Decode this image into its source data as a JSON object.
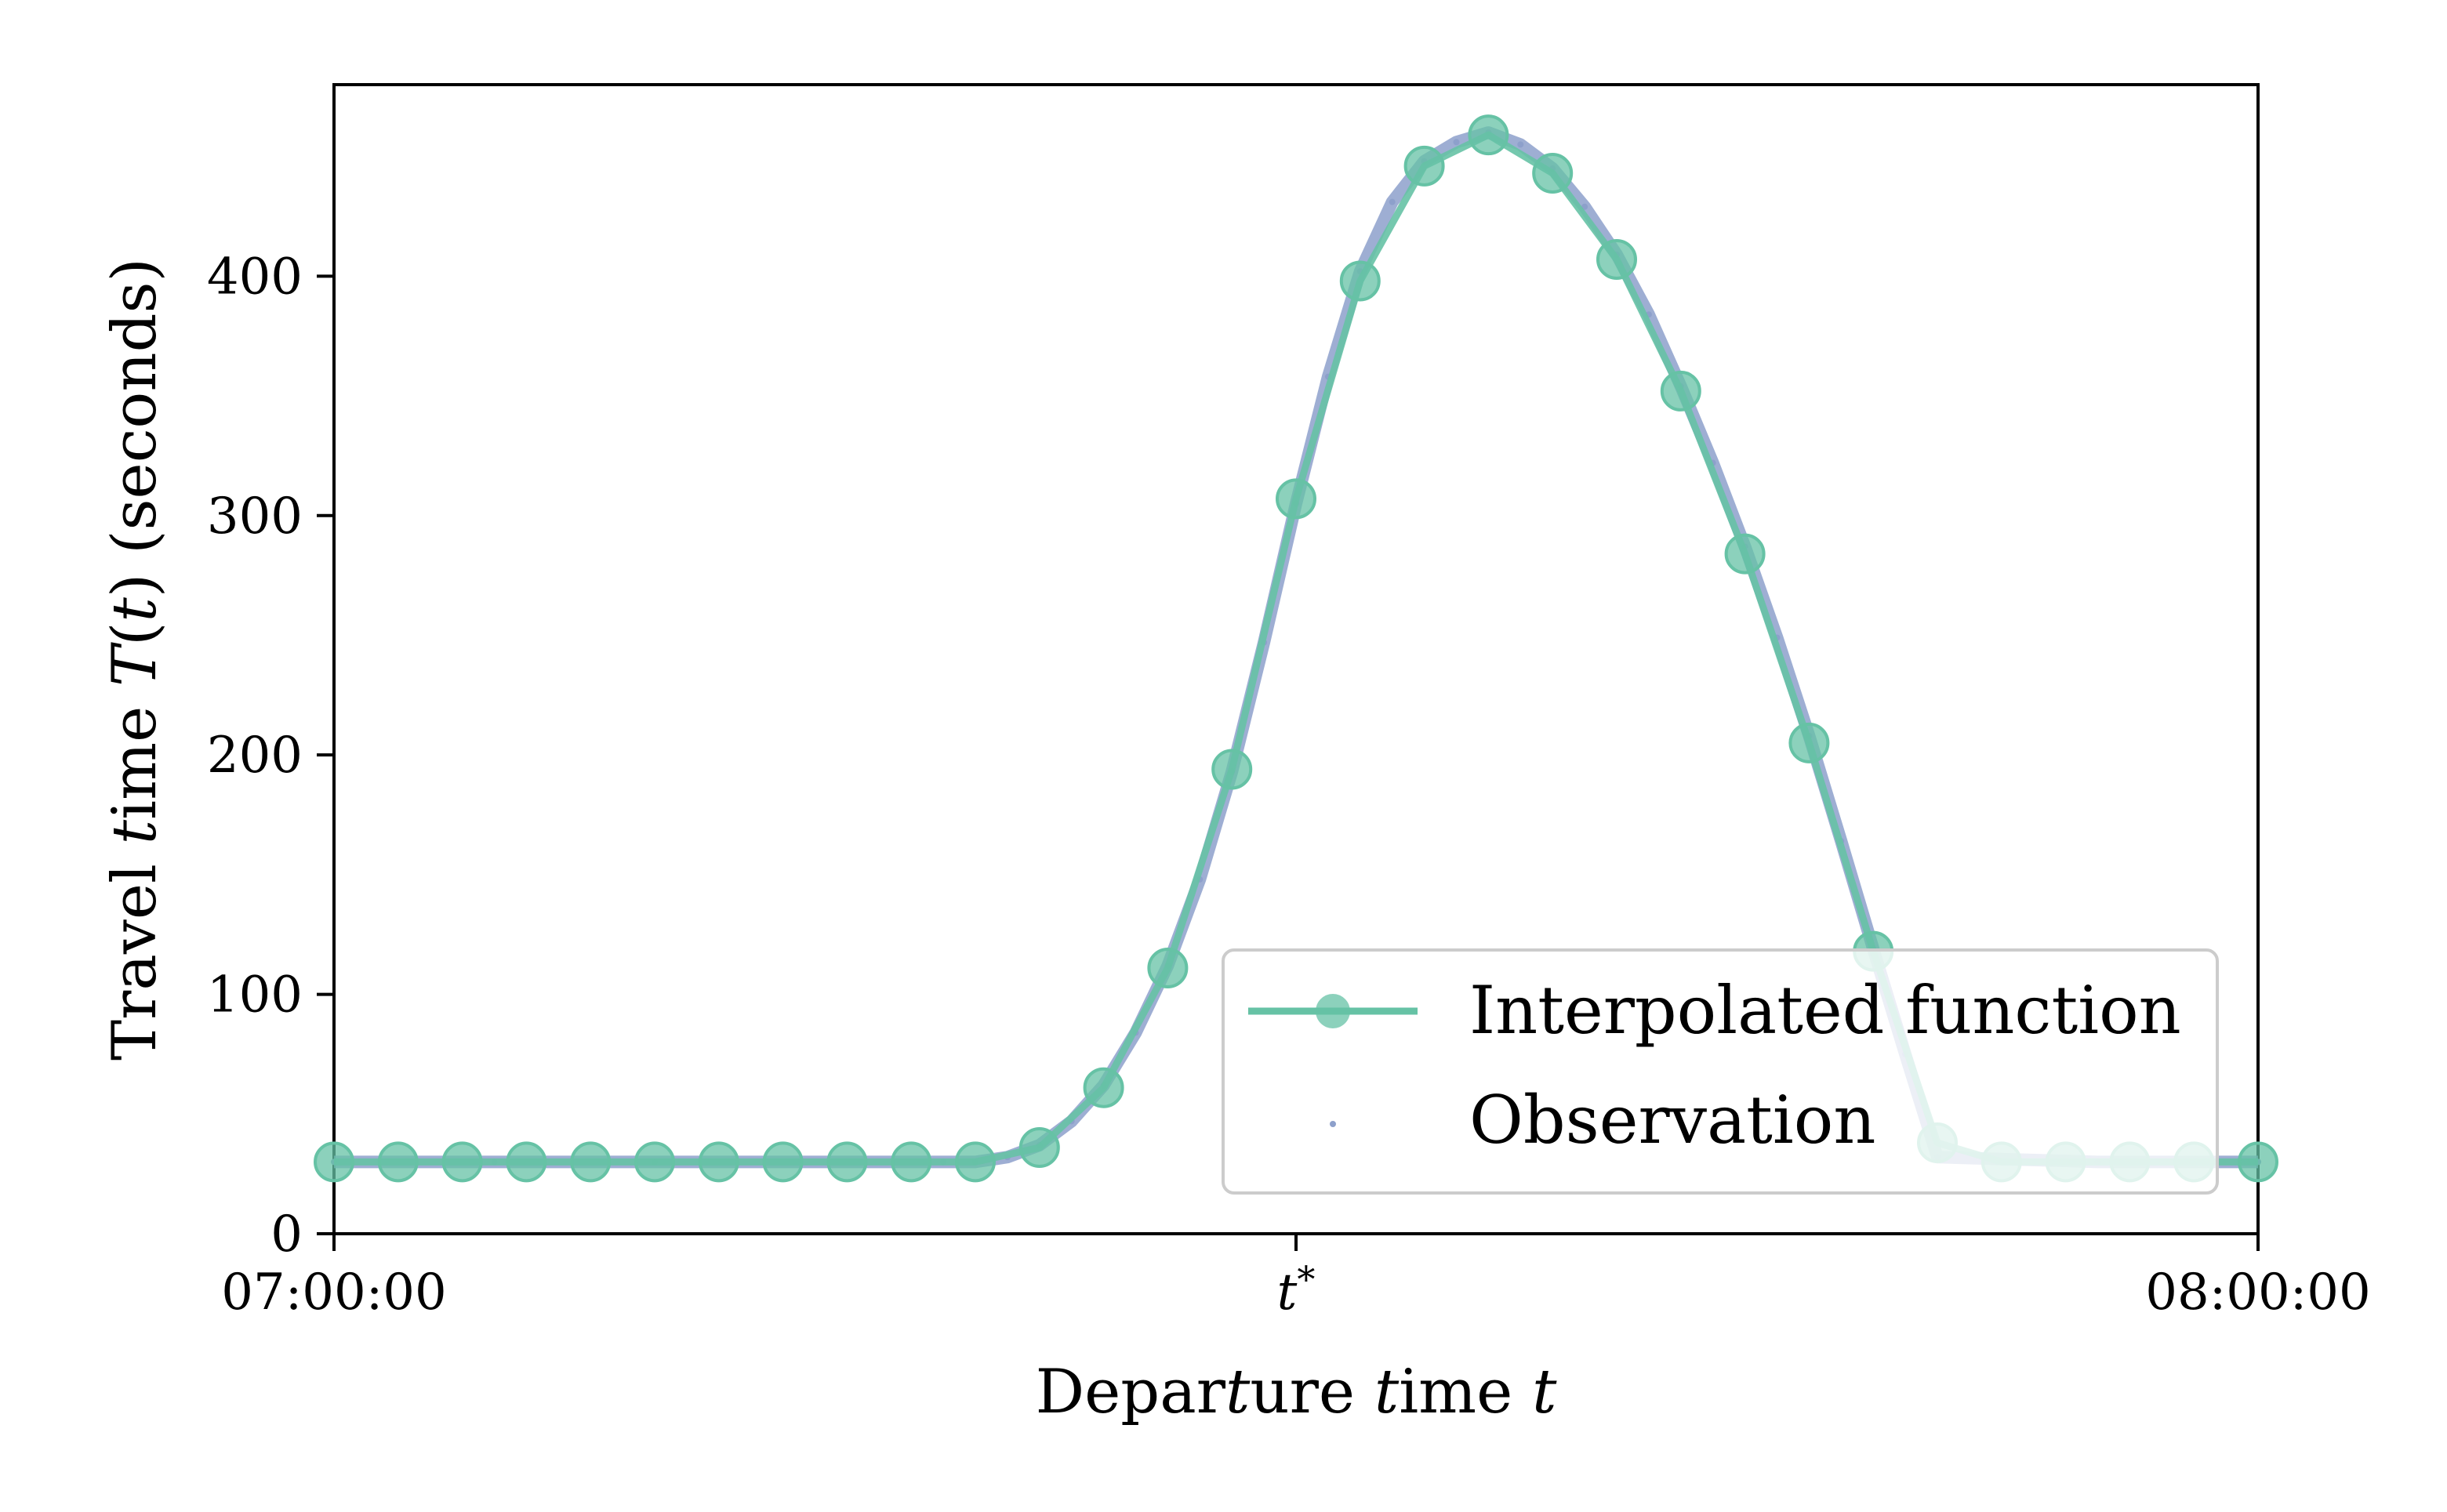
{
  "chart_data": {
    "type": "line",
    "title": "",
    "xlabel": "Departure time t",
    "ylabel": "Travel time T(t) (seconds)",
    "x_unit": "minutes after 07:00:00",
    "xlim": [
      0,
      60
    ],
    "ylim": [
      0,
      480
    ],
    "x_ticks": [
      {
        "value": 0,
        "label": "07:00:00"
      },
      {
        "value": 30,
        "label": "t*"
      },
      {
        "value": 60,
        "label": "08:00:00"
      }
    ],
    "y_ticks": [
      {
        "value": 0,
        "label": "0"
      },
      {
        "value": 100,
        "label": "100"
      },
      {
        "value": 200,
        "label": "200"
      },
      {
        "value": 300,
        "label": "300"
      },
      {
        "value": 400,
        "label": "400"
      }
    ],
    "grid": false,
    "legend_position": "lower-right",
    "series": [
      {
        "name": "Interpolated function",
        "style": "line-with-markers",
        "color": "#66c2a5",
        "x": [
          0,
          2,
          4,
          6,
          8,
          10,
          12,
          14,
          16,
          18,
          20,
          22,
          24,
          26,
          28,
          30,
          32,
          34,
          36,
          38,
          40,
          42,
          44,
          46,
          48,
          50,
          52,
          54,
          56,
          58,
          60
        ],
        "y": [
          30,
          30,
          30,
          30,
          30,
          30,
          30,
          30,
          30,
          30,
          30,
          36,
          61,
          111,
          194,
          307,
          398,
          446,
          459,
          443,
          407,
          352,
          284,
          205,
          118,
          38,
          30,
          30,
          30,
          30,
          30
        ]
      },
      {
        "name": "Observation",
        "style": "scatter-dense",
        "color": "#8da0cb",
        "x": [
          0,
          5,
          10,
          19,
          20,
          21,
          22,
          23,
          24,
          25,
          26,
          27,
          28,
          29,
          30,
          31,
          32,
          33,
          34,
          35,
          36,
          37,
          38,
          39,
          40,
          41,
          42,
          43,
          44,
          45,
          46,
          47,
          48,
          49,
          50,
          55,
          60
        ],
        "y": [
          30,
          30,
          30,
          30,
          30,
          32,
          37,
          47,
          62,
          84,
          112,
          148,
          193,
          247,
          305,
          358,
          402,
          431,
          448,
          456,
          460,
          455,
          445,
          429,
          409,
          384,
          354,
          322,
          287,
          249,
          208,
          164,
          119,
          75,
          32,
          30,
          30
        ]
      }
    ]
  }
}
